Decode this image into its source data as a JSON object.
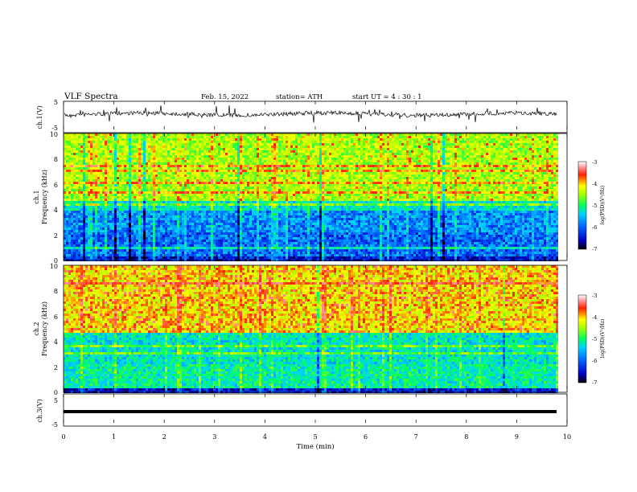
{
  "header": {
    "title": "VLF  Spectra",
    "date": "Feb. 15, 2022",
    "station": "station= ATH",
    "start": "start  UT  =   4  : 30 : 1"
  },
  "chart_data": [
    {
      "type": "line",
      "panel": "ch1-waveform",
      "ylabel": "ch.1(V)",
      "ylim": [
        -5,
        5
      ],
      "yticks": [
        "5",
        "-5"
      ],
      "xlim": [
        0,
        10
      ],
      "description_of_values": "noisy waveform around 0 V with spikes"
    },
    {
      "type": "heatmap",
      "panel": "ch1-spectrogram",
      "ylabel_channel": "ch.1",
      "ylabel": "Frequency  (kHz)",
      "ylim": [
        0,
        10
      ],
      "yticks": [
        "0",
        "2",
        "4",
        "6",
        "8",
        "10"
      ],
      "xlim": [
        0,
        10
      ],
      "colorbar": {
        "label": "log(PSD)(V²/Hz)",
        "range": [
          -7,
          -3
        ],
        "ticks": [
          "-3",
          "-4",
          "-5",
          "-6",
          "-7"
        ]
      },
      "bands_khz": {
        "upper_mixed": [
          4.5,
          10
        ],
        "blue_band": [
          2.2,
          4.8
        ],
        "lower_blue": [
          0.4,
          2.2
        ]
      }
    },
    {
      "type": "heatmap",
      "panel": "ch2-spectrogram",
      "ylabel_channel": "ch.2",
      "ylabel": "Frequency  (kHz)",
      "ylim": [
        0,
        10
      ],
      "yticks": [
        "0",
        "2",
        "4",
        "6",
        "8",
        "10"
      ],
      "xlim": [
        0,
        10
      ],
      "colorbar": {
        "label": "log(PSD)(V²/Hz)",
        "range": [
          -7,
          -3
        ],
        "ticks": [
          "-3",
          "-4",
          "-5",
          "-6",
          "-7"
        ]
      }
    },
    {
      "type": "line",
      "panel": "ch3-waveform",
      "ylabel": "ch.3(V)",
      "ylim": [
        -5,
        5
      ],
      "yticks": [
        "5",
        "-5"
      ],
      "xlim": [
        0,
        10
      ],
      "xticks": [
        "0",
        "1",
        "2",
        "3",
        "4",
        "5",
        "6",
        "7",
        "8",
        "9",
        "10"
      ],
      "xlabel": "Time  (min)"
    }
  ],
  "colors": {
    "colormap": [
      "#000000",
      "#0000ff",
      "#00aaff",
      "#00ff66",
      "#aaff00",
      "#ffff00",
      "#ff0000",
      "#ffffff"
    ]
  }
}
